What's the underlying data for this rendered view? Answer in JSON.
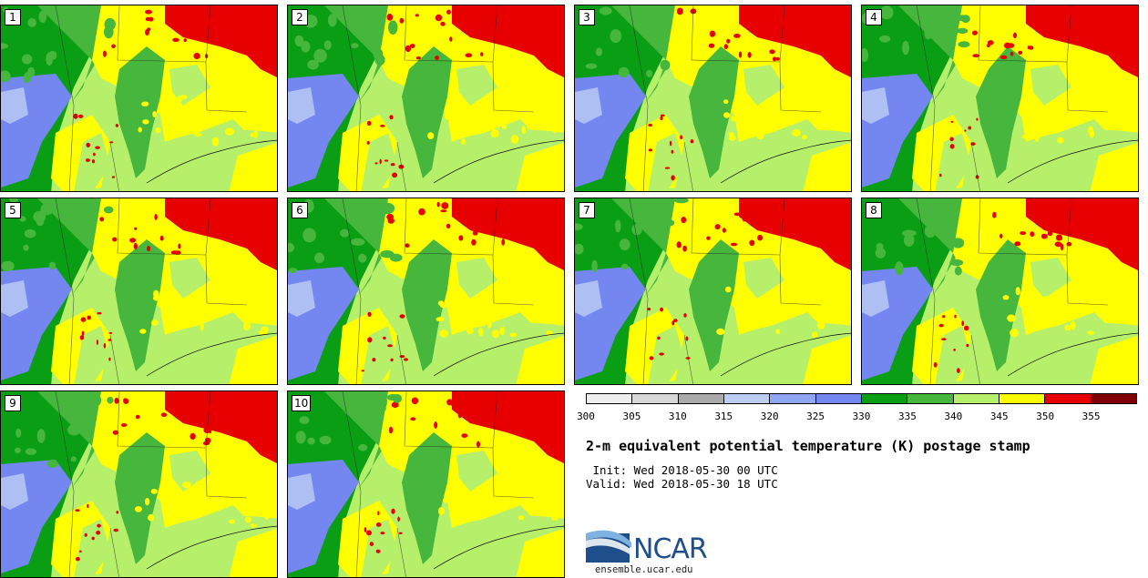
{
  "panels": [
    {
      "label": "1"
    },
    {
      "label": "2"
    },
    {
      "label": "3"
    },
    {
      "label": "4"
    },
    {
      "label": "5"
    },
    {
      "label": "6"
    },
    {
      "label": "7"
    },
    {
      "label": "8"
    },
    {
      "label": "9"
    },
    {
      "label": "10"
    }
  ],
  "colorbar": {
    "colors": [
      "#eeeeee",
      "#d8d8d8",
      "#aaaaaa",
      "#bccdf4",
      "#8ea6f4",
      "#7487f0",
      "#0a9e14",
      "#46b63c",
      "#b6f06a",
      "#ffff00",
      "#e60000",
      "#800000"
    ],
    "ticks": [
      "300",
      "305",
      "310",
      "315",
      "320",
      "325",
      "330",
      "335",
      "340",
      "345",
      "350",
      "355"
    ]
  },
  "title": "2-m equivalent potential temperature (K) postage stamp",
  "init": " Init: Wed 2018-05-30 00 UTC",
  "valid": "Valid: Wed 2018-05-30 18 UTC",
  "logo": {
    "text": "NCAR",
    "url": "ensemble.ucar.edu",
    "color": "#1f4f8a"
  },
  "map_colors": {
    "dark_green": "#0a9e14",
    "mid_green": "#46b63c",
    "light_green": "#b6f06a",
    "yellow": "#ffff00",
    "red": "#e60000",
    "blue": "#7487f0",
    "lavender": "#bccdf4"
  }
}
